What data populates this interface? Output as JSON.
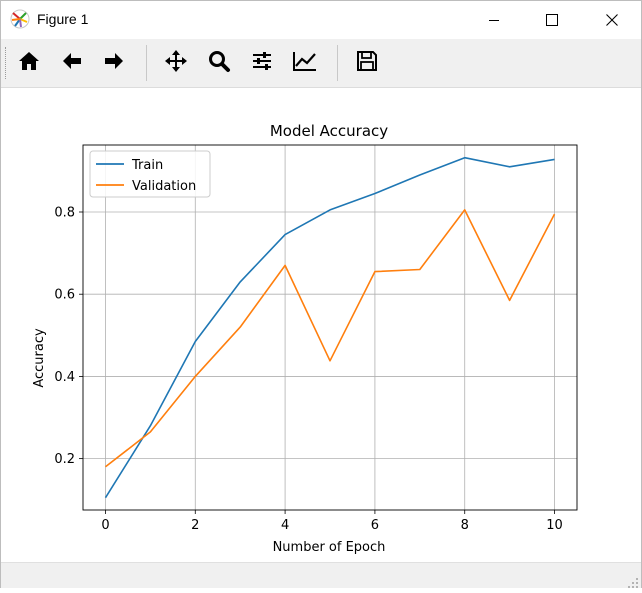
{
  "window": {
    "title": "Figure 1",
    "controls": {
      "minimize": "minimize-icon",
      "maximize": "maximize-icon",
      "close": "close-icon"
    }
  },
  "toolbar": {
    "buttons": [
      {
        "name": "home",
        "icon": "home-icon"
      },
      {
        "name": "back",
        "icon": "arrow-left-icon"
      },
      {
        "name": "forward",
        "icon": "arrow-right-icon"
      },
      {
        "name": "pan",
        "icon": "move-icon"
      },
      {
        "name": "zoom",
        "icon": "magnifier-icon"
      },
      {
        "name": "configure-subplots",
        "icon": "sliders-icon"
      },
      {
        "name": "edit-axis",
        "icon": "line-chart-icon"
      },
      {
        "name": "save",
        "icon": "floppy-disk-icon"
      }
    ]
  },
  "chart_data": {
    "type": "line",
    "title": "Model Accuracy",
    "xlabel": "Number of Epoch",
    "ylabel": "Accuracy",
    "x": [
      0,
      1,
      2,
      3,
      4,
      5,
      6,
      7,
      8,
      9,
      10
    ],
    "xticks": [
      "0",
      "2",
      "4",
      "6",
      "8",
      "10"
    ],
    "yticks": [
      "0.2",
      "0.4",
      "0.6",
      "0.8"
    ],
    "xlim": [
      -0.5,
      10.5
    ],
    "ylim": [
      0.075,
      0.963
    ],
    "grid": true,
    "legend_position": "upper-left",
    "series": [
      {
        "name": "Train",
        "color": "#1f77b4",
        "values": [
          0.105,
          0.28,
          0.485,
          0.63,
          0.745,
          0.805,
          0.845,
          0.89,
          0.932,
          0.91,
          0.928
        ]
      },
      {
        "name": "Validation",
        "color": "#ff7f0e",
        "values": [
          0.18,
          0.265,
          0.4,
          0.52,
          0.67,
          0.438,
          0.655,
          0.66,
          0.805,
          0.585,
          0.795
        ]
      }
    ]
  }
}
